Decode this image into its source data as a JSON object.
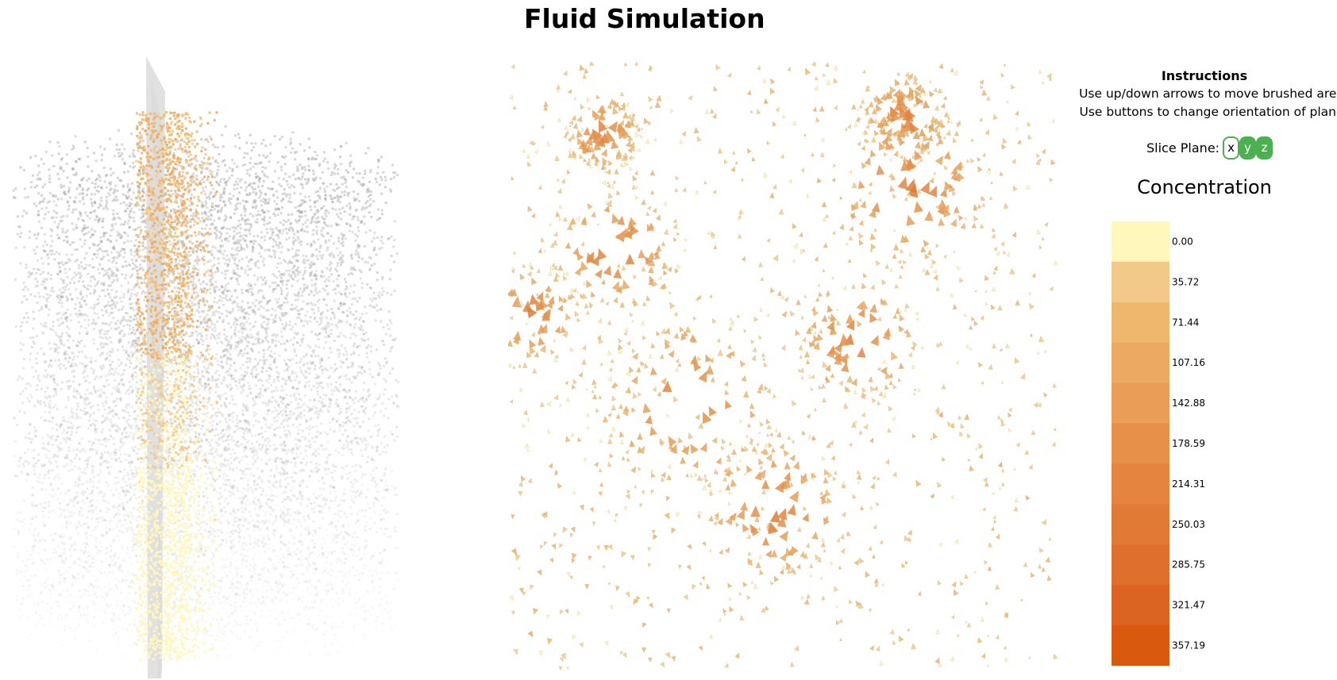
{
  "title": "Fluid Simulation",
  "instructions": {
    "heading": "Instructions",
    "line1": "Use up/down arrows to move brushed area",
    "line2": "Use buttons to change orientation of plane"
  },
  "slice_plane": {
    "label": "Slice Plane:",
    "options": [
      "x",
      "y",
      "z"
    ],
    "selected": "x"
  },
  "legend": {
    "title": "Concentration",
    "thresholds": [
      "0.00",
      "35.72",
      "71.44",
      "107.16",
      "142.88",
      "178.59",
      "214.31",
      "250.03",
      "285.75",
      "321.47",
      "357.19"
    ],
    "colors": [
      "#fff7bc",
      "#f3c98a",
      "#efb76e",
      "#eba962",
      "#e99d56",
      "#e6904a",
      "#e4843f",
      "#e17a35",
      "#de6f2c",
      "#dc6423",
      "#d9590f"
    ]
  },
  "colors": {
    "particle_gray": "#9a9a9a",
    "plane_gray": "#dcdcdc",
    "button_green": "#4caf50"
  }
}
